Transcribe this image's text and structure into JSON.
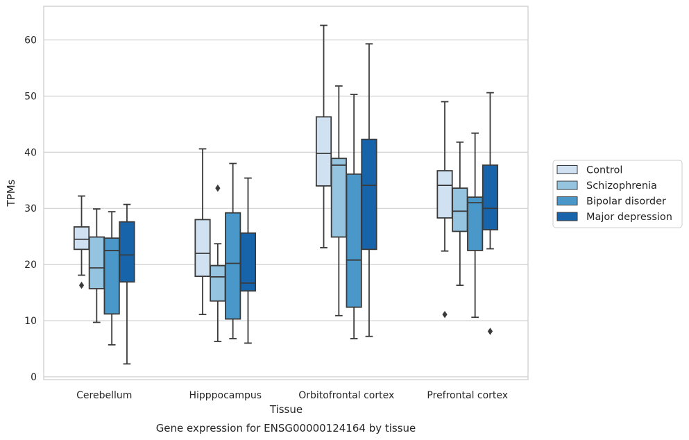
{
  "chart_data": {
    "type": "boxplot",
    "xlabel": "Tissue",
    "ylabel": "TPMs",
    "caption": "Gene expression for ENSG00000124164 by tissue",
    "ylim": [
      -0.5,
      66
    ],
    "yticks": [
      0,
      10,
      20,
      30,
      40,
      50,
      60
    ],
    "grid": true,
    "legend_position": "right",
    "categories": [
      "Cerebellum",
      "Hipppocampus",
      "Orbitofrontal cortex",
      "Prefrontal cortex"
    ],
    "series": [
      {
        "name": "Control",
        "color": "#d0e1f2",
        "boxes": [
          {
            "whislo": 18.1,
            "q1": 22.7,
            "med": 24.5,
            "q3": 26.7,
            "whishi": 32.2,
            "fliers": [
              16.3
            ]
          },
          {
            "whislo": 11.1,
            "q1": 17.9,
            "med": 22.0,
            "q3": 28.0,
            "whishi": 40.6,
            "fliers": []
          },
          {
            "whislo": 23.0,
            "q1": 34.0,
            "med": 39.8,
            "q3": 46.3,
            "whishi": 62.6,
            "fliers": []
          },
          {
            "whislo": 22.4,
            "q1": 28.3,
            "med": 34.1,
            "q3": 36.7,
            "whishi": 49.0,
            "fliers": [
              11.1
            ]
          }
        ]
      },
      {
        "name": "Schizophrenia",
        "color": "#94c4df",
        "boxes": [
          {
            "whislo": 9.7,
            "q1": 15.7,
            "med": 19.4,
            "q3": 24.9,
            "whishi": 29.9,
            "fliers": []
          },
          {
            "whislo": 6.3,
            "q1": 13.5,
            "med": 17.8,
            "q3": 19.8,
            "whishi": 23.7,
            "fliers": [
              33.6
            ]
          },
          {
            "whislo": 10.9,
            "q1": 24.9,
            "med": 37.7,
            "q3": 38.9,
            "whishi": 51.8,
            "fliers": []
          },
          {
            "whislo": 16.3,
            "q1": 25.9,
            "med": 29.5,
            "q3": 33.6,
            "whishi": 41.8,
            "fliers": []
          }
        ]
      },
      {
        "name": "Bipolar disorder",
        "color": "#4a98c9",
        "boxes": [
          {
            "whislo": 5.7,
            "q1": 11.2,
            "med": 22.5,
            "q3": 24.7,
            "whishi": 29.4,
            "fliers": []
          },
          {
            "whislo": 6.8,
            "q1": 10.3,
            "med": 20.2,
            "q3": 29.2,
            "whishi": 38.0,
            "fliers": []
          },
          {
            "whislo": 6.8,
            "q1": 12.4,
            "med": 20.8,
            "q3": 36.1,
            "whishi": 50.3,
            "fliers": []
          },
          {
            "whislo": 10.6,
            "q1": 22.5,
            "med": 31.0,
            "q3": 32.0,
            "whishi": 43.4,
            "fliers": []
          }
        ]
      },
      {
        "name": "Major depression",
        "color": "#1764ab",
        "boxes": [
          {
            "whislo": 2.3,
            "q1": 16.9,
            "med": 21.7,
            "q3": 27.6,
            "whishi": 30.7,
            "fliers": []
          },
          {
            "whislo": 6.0,
            "q1": 15.3,
            "med": 16.7,
            "q3": 25.6,
            "whishi": 35.4,
            "fliers": []
          },
          {
            "whislo": 7.2,
            "q1": 22.7,
            "med": 34.1,
            "q3": 42.3,
            "whishi": 59.3,
            "fliers": []
          },
          {
            "whislo": 22.8,
            "q1": 26.2,
            "med": 30.0,
            "q3": 37.7,
            "whishi": 50.6,
            "fliers": [
              8.1
            ]
          }
        ]
      }
    ]
  }
}
